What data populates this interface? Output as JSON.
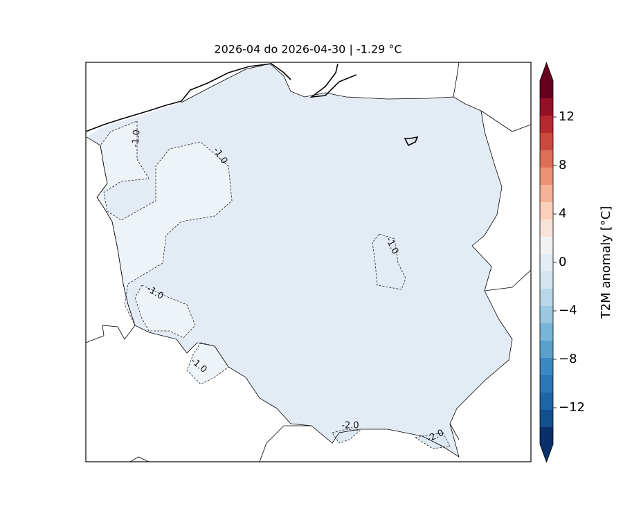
{
  "title": "2026-04 do 2026-04-30 | -1.29 °C",
  "colorbar": {
    "label": "T2M anomaly [°C]",
    "lim": [
      -15,
      15
    ],
    "ticks": [
      {
        "value": -12,
        "label": "−12"
      },
      {
        "value": -8,
        "label": "−8"
      },
      {
        "value": -4,
        "label": "−4"
      },
      0,
      4,
      8,
      12
    ],
    "colors": [
      "#08306b",
      "#134f8f",
      "#1d65a6",
      "#2a77b8",
      "#3a89c3",
      "#5aa0cd",
      "#79b5d8",
      "#9ac8e1",
      "#b8d8ea",
      "#d2e5f1",
      "#e3edf5",
      "#f2f2f2",
      "#f9e3d9",
      "#fbcfba",
      "#f6b297",
      "#ed9274",
      "#de6e56",
      "#cc4a3d",
      "#b52a2f",
      "#941026",
      "#67001f"
    ],
    "extend_low": "#08306b",
    "extend_high": "#67001f"
  },
  "contour_labels": [
    "-1.0",
    "-1.0",
    "-1.0",
    "-1.0",
    "-1.0",
    "-2.0",
    "-2.0"
  ]
}
